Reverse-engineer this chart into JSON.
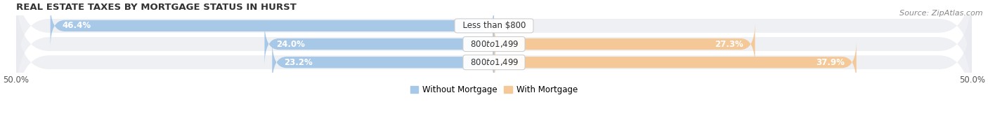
{
  "title": "REAL ESTATE TAXES BY MORTGAGE STATUS IN HURST",
  "source": "Source: ZipAtlas.com",
  "rows": [
    {
      "label": "Less than $800",
      "without_mortgage": 46.4,
      "with_mortgage": 0.0
    },
    {
      "label": "$800 to $1,499",
      "without_mortgage": 24.0,
      "with_mortgage": 27.3
    },
    {
      "label": "$800 to $1,499",
      "without_mortgage": 23.2,
      "with_mortgage": 37.9
    }
  ],
  "x_max": 50.0,
  "x_min": -50.0,
  "color_without": "#a8c8e8",
  "color_with": "#f5c898",
  "bar_height": 0.62,
  "row_bg_color": "#e8eaf0",
  "row_bg_alpha": 0.7,
  "title_fontsize": 9.5,
  "pct_fontsize": 8.5,
  "label_fontsize": 8.5,
  "tick_fontsize": 8.5,
  "legend_fontsize": 8.5,
  "source_fontsize": 8.0
}
